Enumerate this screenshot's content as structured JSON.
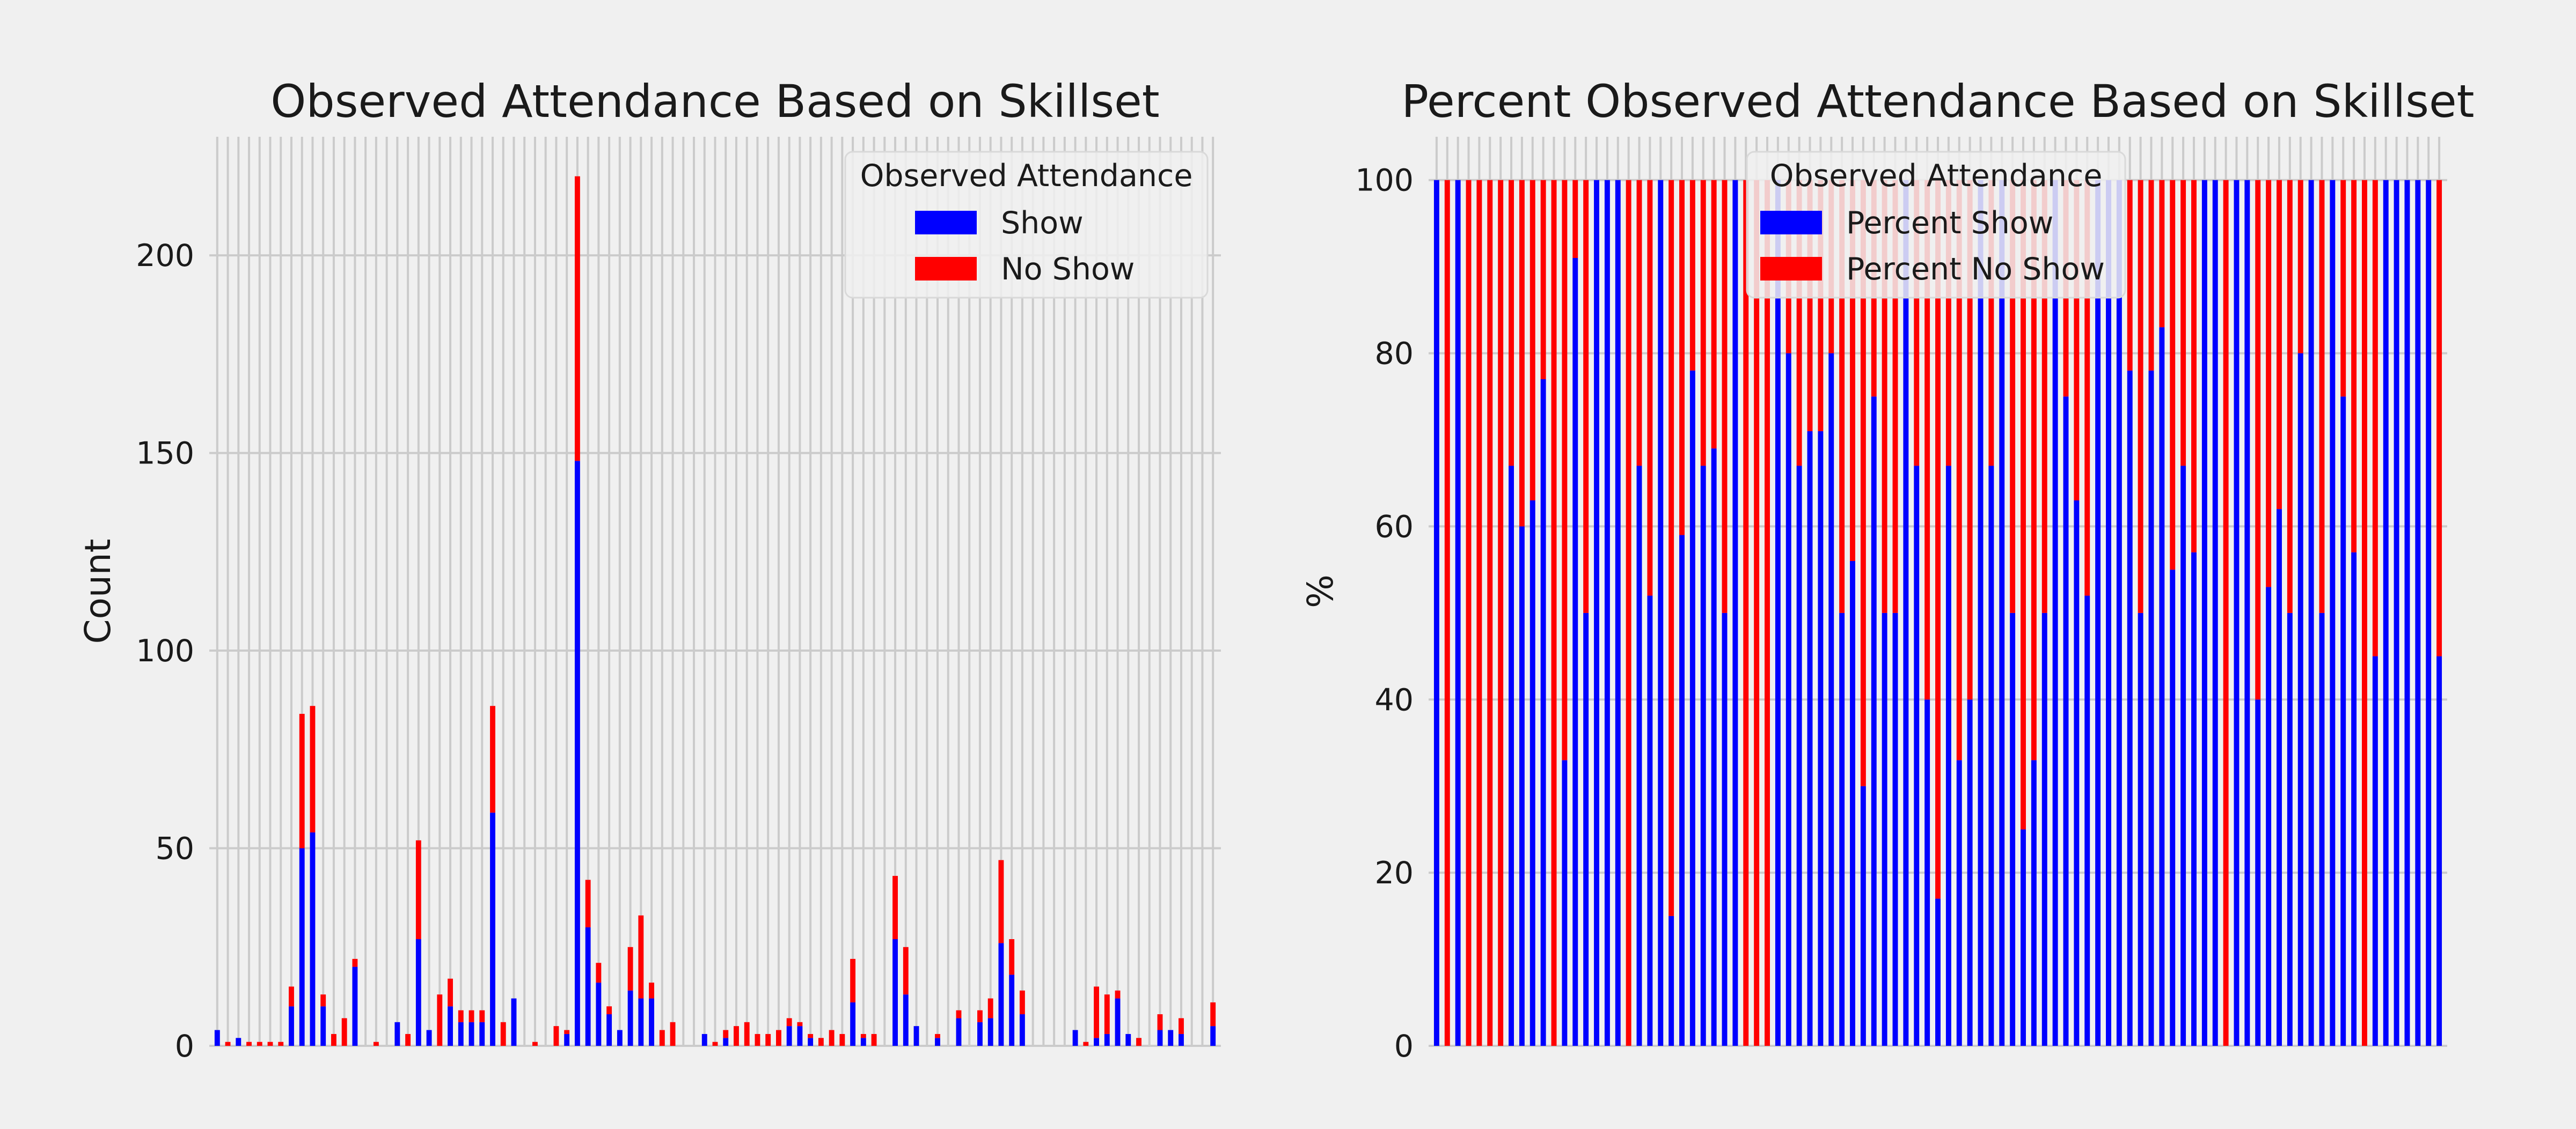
{
  "chart_data": [
    {
      "type": "bar",
      "stacked": true,
      "title": "Observed Attendance Based on Skillset",
      "xlabel": "",
      "ylabel": "Count",
      "ylim": [
        0,
        230
      ],
      "yticks": [
        0,
        50,
        100,
        150,
        200
      ],
      "grid": true,
      "legend": {
        "title": "Observed Attendance",
        "placement": "top-right"
      },
      "categories_note": "95 skillset categories; tick labels are rotated and overlapping, illegible",
      "series": [
        {
          "name": "Show",
          "color": "#0000ff",
          "values": [
            4,
            0,
            2,
            0,
            0,
            0,
            0,
            10,
            50,
            54,
            10,
            0,
            0,
            20,
            0,
            0,
            0,
            6,
            0,
            27,
            4,
            0,
            10,
            6,
            6,
            6,
            59,
            0,
            12,
            0,
            0,
            0,
            0,
            3,
            148,
            30,
            16,
            8,
            4,
            14,
            12,
            12,
            0,
            0,
            0,
            0,
            3,
            0,
            2,
            0,
            0,
            0,
            0,
            0,
            5,
            5,
            2,
            0,
            0,
            0,
            11,
            2,
            0,
            0,
            27,
            13,
            5,
            0,
            2,
            0,
            7,
            0,
            6,
            7,
            26,
            18,
            8,
            0,
            0,
            0,
            0,
            4,
            0,
            2,
            3,
            12,
            3,
            0,
            0,
            4,
            4,
            3,
            0,
            0,
            5
          ]
        },
        {
          "name": "No Show",
          "color": "#ff0000",
          "values": [
            0,
            1,
            0,
            1,
            1,
            1,
            1,
            5,
            34,
            32,
            3,
            3,
            7,
            2,
            0,
            1,
            0,
            0,
            3,
            25,
            0,
            13,
            7,
            3,
            3,
            3,
            27,
            6,
            0,
            0,
            1,
            0,
            5,
            1,
            72,
            12,
            5,
            2,
            0,
            11,
            21,
            4,
            4,
            6,
            0,
            0,
            0,
            1,
            2,
            5,
            6,
            3,
            3,
            4,
            2,
            1,
            1,
            2,
            4,
            3,
            11,
            1,
            3,
            0,
            16,
            12,
            0,
            0,
            1,
            0,
            2,
            0,
            3,
            5,
            21,
            9,
            6,
            0,
            0,
            0,
            0,
            0,
            1,
            13,
            10,
            2,
            0,
            2,
            0,
            4,
            0,
            4,
            0,
            0,
            6
          ]
        }
      ]
    },
    {
      "type": "bar",
      "stacked": true,
      "title": "Percent Observed Attendance Based on Skillset",
      "xlabel": "",
      "ylabel": "%",
      "ylim": [
        0,
        105
      ],
      "yticks": [
        0,
        20,
        40,
        60,
        80,
        100
      ],
      "grid": true,
      "legend": {
        "title": "Observed Attendance",
        "placement": "top-center"
      },
      "categories_note": "same 95 skillset categories, illegible",
      "series": [
        {
          "name": "Percent Show",
          "color": "#0000ff",
          "values": [
            100,
            0,
            100,
            0,
            0,
            0,
            0,
            67,
            60,
            63,
            77,
            0,
            33,
            91,
            50,
            100,
            100,
            100,
            0,
            67,
            52,
            100,
            15,
            59,
            78,
            67,
            69,
            50,
            100,
            0,
            0,
            0,
            100,
            80,
            67,
            71,
            71,
            80,
            50,
            56,
            30,
            75,
            50,
            50,
            100,
            67,
            40,
            17,
            67,
            33,
            40,
            100,
            67,
            100,
            50,
            25,
            33,
            50,
            100,
            75,
            63,
            52,
            100,
            100,
            100,
            78,
            50,
            78,
            83,
            55,
            67,
            57,
            100,
            100,
            0,
            100,
            100,
            40,
            53,
            62,
            50,
            80,
            100,
            50,
            100,
            75,
            57,
            0,
            45,
            100,
            100,
            100,
            100,
            100,
            45
          ]
        },
        {
          "name": "Percent No Show",
          "color": "#ff0000",
          "values": [
            0,
            100,
            0,
            100,
            100,
            100,
            100,
            33,
            40,
            37,
            23,
            100,
            67,
            9,
            50,
            0,
            0,
            0,
            100,
            33,
            48,
            0,
            85,
            41,
            22,
            33,
            31,
            50,
            0,
            100,
            100,
            100,
            0,
            20,
            33,
            29,
            29,
            20,
            50,
            44,
            70,
            25,
            50,
            50,
            0,
            33,
            60,
            83,
            33,
            67,
            60,
            0,
            33,
            0,
            50,
            75,
            67,
            50,
            0,
            25,
            37,
            48,
            0,
            0,
            0,
            22,
            50,
            22,
            17,
            45,
            33,
            43,
            0,
            0,
            100,
            0,
            0,
            60,
            47,
            38,
            50,
            20,
            0,
            50,
            0,
            25,
            43,
            100,
            55,
            0,
            0,
            0,
            0,
            0,
            55
          ]
        }
      ]
    }
  ]
}
